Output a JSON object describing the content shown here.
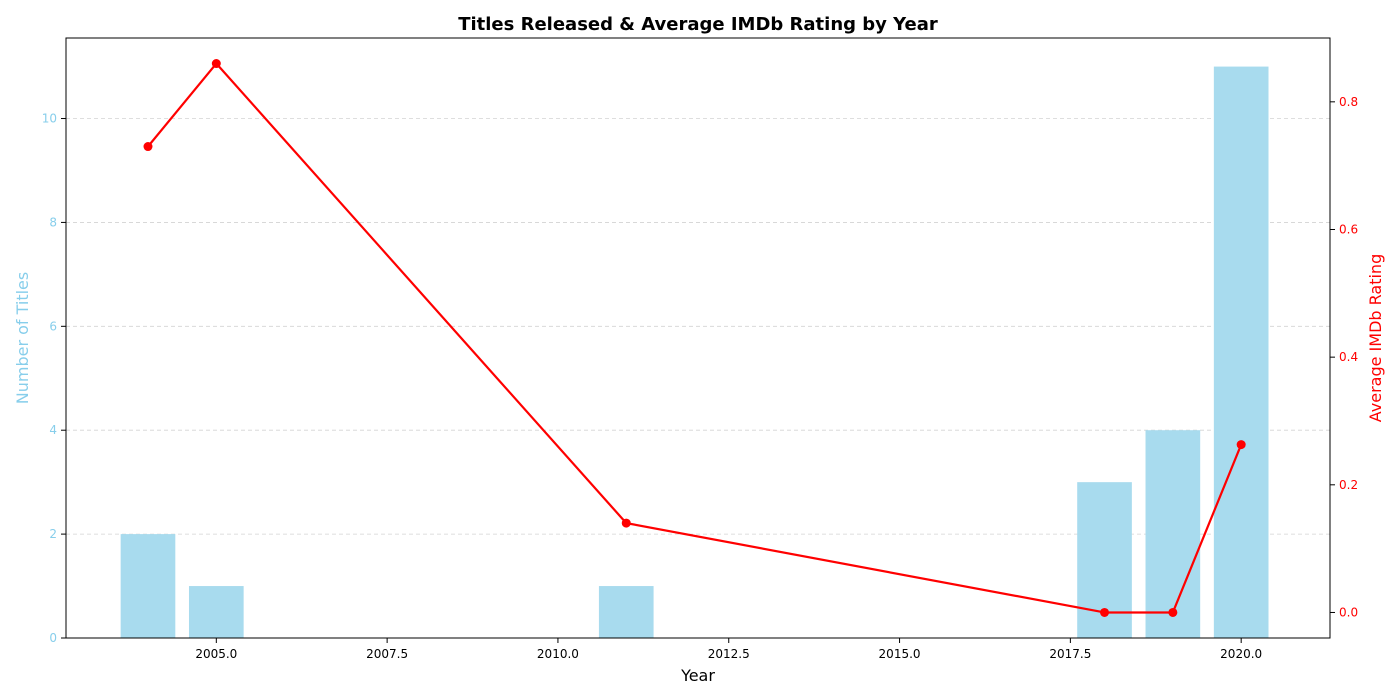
{
  "chart_data": {
    "type": "bar",
    "title": "Titles Released & Average IMDb Rating by Year",
    "xlabel": "Year",
    "ylabel": "Number of Titles",
    "y2label": "Average IMDb Rating",
    "xlim": [
      2002.8,
      2021.3
    ],
    "ylim": [
      0,
      11.55
    ],
    "y2lim": [
      -0.04,
      0.9
    ],
    "x_ticks": [
      2005.0,
      2007.5,
      2010.0,
      2012.5,
      2015.0,
      2017.5,
      2020.0
    ],
    "x_tick_labels": [
      "2005.0",
      "2007.5",
      "2010.0",
      "2012.5",
      "2015.0",
      "2017.5",
      "2020.0"
    ],
    "y_ticks": [
      0,
      2,
      4,
      6,
      8,
      10
    ],
    "y_tick_labels": [
      "0",
      "2",
      "4",
      "6",
      "8",
      "10"
    ],
    "y2_ticks": [
      0.0,
      0.2,
      0.4,
      0.6,
      0.8
    ],
    "y2_tick_labels": [
      "0.0",
      "0.2",
      "0.4",
      "0.6",
      "0.8"
    ],
    "grid": "horizontal dashed",
    "colors": {
      "bars": "#a8dbee",
      "left_axis": "#87ceeb",
      "line": "#ff0000",
      "grid": "#d3d3d3"
    },
    "series": [
      {
        "type": "bar",
        "axis": "left",
        "x": [
          2004,
          2005,
          2011,
          2018,
          2019,
          2020
        ],
        "values": [
          2,
          1,
          1,
          3,
          4,
          11
        ]
      },
      {
        "type": "line",
        "axis": "right",
        "x": [
          2004,
          2005,
          2011,
          2018,
          2019,
          2020
        ],
        "values": [
          0.73,
          0.86,
          0.14,
          0.0,
          0.0,
          0.263
        ]
      }
    ]
  }
}
